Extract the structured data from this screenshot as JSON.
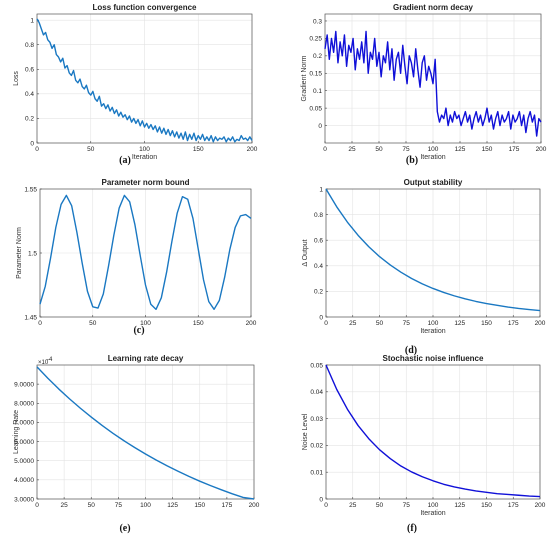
{
  "chart_data": [
    {
      "id": "a",
      "type": "line",
      "title": "Loss function convergence",
      "xlabel": "Iteration",
      "ylabel": "Loss",
      "xlim": [
        0,
        200
      ],
      "ylim": [
        0,
        1.05
      ],
      "xticks": [
        0,
        50,
        100,
        150,
        200
      ],
      "yticks": [
        0,
        0.2,
        0.4,
        0.6,
        0.8,
        1
      ],
      "ytick_labels": [
        "0",
        "0.2",
        "0.4",
        "0.6",
        "0.8",
        "1"
      ],
      "grid": true,
      "color": "#1a78c2",
      "series": [
        {
          "x_start": 0,
          "x_step": 2,
          "values": [
            1.01,
            0.98,
            0.93,
            0.88,
            0.9,
            0.84,
            0.82,
            0.77,
            0.8,
            0.72,
            0.7,
            0.66,
            0.69,
            0.61,
            0.63,
            0.57,
            0.55,
            0.59,
            0.51,
            0.49,
            0.52,
            0.46,
            0.44,
            0.47,
            0.41,
            0.39,
            0.42,
            0.36,
            0.34,
            0.38,
            0.3,
            0.32,
            0.28,
            0.31,
            0.26,
            0.29,
            0.24,
            0.27,
            0.22,
            0.25,
            0.21,
            0.23,
            0.19,
            0.22,
            0.17,
            0.2,
            0.16,
            0.19,
            0.14,
            0.18,
            0.13,
            0.16,
            0.12,
            0.15,
            0.11,
            0.14,
            0.09,
            0.13,
            0.08,
            0.12,
            0.07,
            0.11,
            0.06,
            0.1,
            0.05,
            0.09,
            0.04,
            0.08,
            0.03,
            0.09,
            0.02,
            0.07,
            0.03,
            0.08,
            0.02,
            0.06,
            0.03,
            0.07,
            0.02,
            0.05,
            0.02,
            0.06,
            0.01,
            0.05,
            0.02,
            0.04,
            0.03,
            0.05,
            0.01,
            0.04,
            0.02,
            0.05,
            0.01,
            0.03,
            0.02,
            0.06,
            0.03,
            0.04,
            0.02,
            0.05,
            0.02
          ]
        }
      ],
      "sublabel": "(a)"
    },
    {
      "id": "b",
      "type": "line",
      "title": "Gradient norm decay",
      "xlabel": "Iteration",
      "ylabel": "Gradient Norm",
      "xlim": [
        0,
        200
      ],
      "ylim": [
        -0.05,
        0.32
      ],
      "xticks": [
        0,
        25,
        50,
        75,
        100,
        125,
        150,
        175,
        200
      ],
      "yticks": [
        0,
        0.05,
        0.1,
        0.15,
        0.2,
        0.25,
        0.3
      ],
      "ytick_labels": [
        "0",
        "0.05",
        "0.1",
        "0.15",
        "0.2",
        "0.25",
        "0.3"
      ],
      "grid": true,
      "color": "#1010d8",
      "series": [
        {
          "x_start": 0,
          "x_step": 2,
          "values": [
            0.22,
            0.26,
            0.19,
            0.25,
            0.21,
            0.27,
            0.18,
            0.24,
            0.2,
            0.26,
            0.17,
            0.23,
            0.21,
            0.25,
            0.16,
            0.22,
            0.19,
            0.24,
            0.18,
            0.27,
            0.15,
            0.21,
            0.19,
            0.25,
            0.17,
            0.21,
            0.14,
            0.2,
            0.18,
            0.24,
            0.16,
            0.22,
            0.13,
            0.19,
            0.21,
            0.15,
            0.23,
            0.17,
            0.12,
            0.2,
            0.18,
            0.14,
            0.22,
            0.16,
            0.11,
            0.18,
            0.2,
            0.13,
            0.17,
            0.15,
            0.12,
            0.19,
            0.04,
            0.01,
            0.03,
            0.02,
            0.05,
            0.0,
            0.03,
            0.01,
            0.04,
            0.02,
            0.03,
            0.0,
            0.02,
            0.04,
            0.01,
            0.03,
            -0.01,
            0.02,
            0.04,
            0.01,
            0.03,
            0.0,
            0.02,
            0.05,
            0.01,
            0.03,
            -0.01,
            0.02,
            0.04,
            0.0,
            0.03,
            0.01,
            0.02,
            0.04,
            -0.01,
            0.03,
            0.01,
            0.02,
            0.04,
            0.0,
            0.03,
            -0.02,
            0.02,
            0.04,
            0.01,
            0.03,
            -0.03,
            0.02,
            0.01
          ]
        }
      ],
      "sublabel": "(b)"
    },
    {
      "id": "c",
      "type": "line",
      "title": "Parameter norm bound",
      "xlabel": "",
      "ylabel": "Parameter Norm",
      "xlim": [
        0,
        200
      ],
      "ylim": [
        1.45,
        1.55
      ],
      "xticks": [
        0,
        50,
        100,
        150,
        200
      ],
      "yticks": [
        1.45,
        1.5,
        1.55
      ],
      "ytick_labels": [
        "1.45",
        "1.5",
        "1.55"
      ],
      "grid": true,
      "color": "#1a78c2",
      "series": [
        {
          "x_start": 0,
          "x_step": 5,
          "values": [
            1.46,
            1.474,
            1.496,
            1.52,
            1.538,
            1.545,
            1.537,
            1.516,
            1.492,
            1.47,
            1.458,
            1.457,
            1.468,
            1.49,
            1.514,
            1.535,
            1.545,
            1.54,
            1.522,
            1.498,
            1.475,
            1.46,
            1.456,
            1.465,
            1.485,
            1.509,
            1.531,
            1.544,
            1.542,
            1.527,
            1.503,
            1.479,
            1.462,
            1.456,
            1.463,
            1.481,
            1.503,
            1.52,
            1.529,
            1.53,
            1.527
          ]
        }
      ],
      "sublabel": "(c)"
    },
    {
      "id": "d",
      "type": "line",
      "title": "Output stability",
      "xlabel": "Iteration",
      "ylabel": "Δ Output",
      "xlim": [
        0,
        200
      ],
      "ylim": [
        0,
        1
      ],
      "xticks": [
        0,
        25,
        50,
        75,
        100,
        125,
        150,
        175,
        200
      ],
      "yticks": [
        0,
        0.2,
        0.4,
        0.6,
        0.8,
        1
      ],
      "ytick_labels": [
        "0",
        "0.2",
        "0.4",
        "0.6",
        "0.8",
        "1"
      ],
      "grid": true,
      "color": "#1a78c2",
      "series": [
        {
          "x_start": 0,
          "x_step": 10,
          "values": [
            1.0,
            0.861,
            0.741,
            0.638,
            0.549,
            0.472,
            0.407,
            0.35,
            0.301,
            0.259,
            0.223,
            0.192,
            0.165,
            0.142,
            0.122,
            0.105,
            0.091,
            0.078,
            0.067,
            0.058,
            0.05
          ]
        }
      ],
      "sublabel": "(d)"
    },
    {
      "id": "e",
      "type": "line",
      "title": "Learning rate decay",
      "xlabel": "",
      "ylabel": "Learning Rate",
      "xlim": [
        0,
        200
      ],
      "ylim": [
        3.0,
        10.0
      ],
      "axis_multiplier": "×10",
      "axis_multiplier_exp": "-4",
      "xticks": [
        0,
        25,
        50,
        75,
        100,
        125,
        150,
        175,
        200
      ],
      "yticks": [
        3,
        4,
        5,
        6,
        7,
        8,
        9
      ],
      "ytick_labels": [
        "3.0000",
        "4.0000",
        "5.0000",
        "6.0000",
        "7.0000",
        "8.0000",
        "9.0000"
      ],
      "grid": true,
      "color": "#1a78c2",
      "series": [
        {
          "x_start": 0,
          "x_step": 10,
          "values": [
            9.9,
            9.31,
            8.75,
            8.23,
            7.74,
            7.28,
            6.84,
            6.43,
            6.05,
            5.69,
            5.35,
            5.03,
            4.73,
            4.45,
            4.18,
            3.93,
            3.7,
            3.48,
            3.27,
            3.08,
            3.0
          ]
        }
      ],
      "sublabel": "(e)"
    },
    {
      "id": "f",
      "type": "line",
      "title": "Stochastic noise influence",
      "xlabel": "Iteration",
      "ylabel": "Noise Level",
      "xlim": [
        0,
        200
      ],
      "ylim": [
        0,
        0.05
      ],
      "xticks": [
        0,
        25,
        50,
        75,
        100,
        125,
        150,
        175,
        200
      ],
      "yticks": [
        0,
        0.01,
        0.02,
        0.03,
        0.04,
        0.05
      ],
      "ytick_labels": [
        "0",
        "0.01",
        "0.02",
        "0.03",
        "0.04",
        "0.05"
      ],
      "grid": true,
      "color": "#1010d8",
      "series": [
        {
          "x_start": 0,
          "x_step": 10,
          "values": [
            0.05,
            0.0409,
            0.0335,
            0.0274,
            0.0225,
            0.0184,
            0.0151,
            0.0123,
            0.0101,
            0.0083,
            0.0068,
            0.0055,
            0.0045,
            0.0037,
            0.003,
            0.0025,
            0.002,
            0.0017,
            0.0014,
            0.0011,
            0.0009
          ]
        }
      ],
      "sublabel": "(f)"
    }
  ]
}
